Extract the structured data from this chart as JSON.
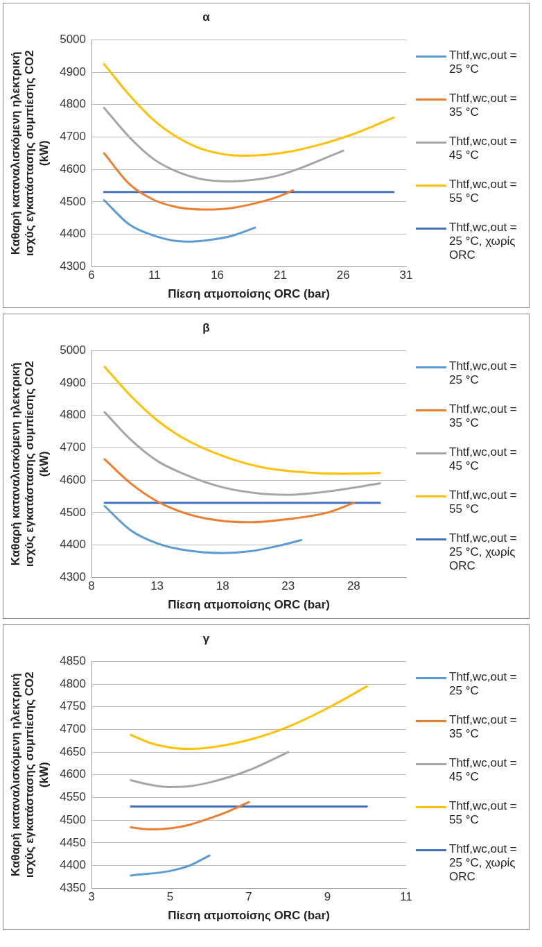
{
  "chart_data": [
    {
      "type": "line",
      "title": "α",
      "xlabel": "Πίεση ατμοποίσης ORC (bar)",
      "ylabel": "Καθαρή καταναλισκόμενη ηλεκτρική ισχύς εγκατάστασης συμπίεσης CO2 (kW)",
      "xlim": [
        6,
        31
      ],
      "xticks": [
        6,
        11,
        16,
        21,
        26,
        31
      ],
      "ylim": [
        4300,
        5000
      ],
      "yticks": [
        4300,
        4400,
        4500,
        4600,
        4700,
        4800,
        4900,
        5000
      ],
      "grid": "y",
      "legend": "right",
      "marker": "none",
      "line_style": "solid",
      "series": [
        {
          "name": "Thtf,wc,out = 25 °C",
          "color": "#5b9bd5",
          "x": [
            7,
            9,
            11,
            13,
            14,
            15,
            17,
            19
          ],
          "values": [
            4505,
            4430,
            4395,
            4378,
            4377,
            4380,
            4393,
            4420
          ]
        },
        {
          "name": "Thtf,wc,out = 35 °C",
          "color": "#ed7d31",
          "x": [
            7,
            9,
            11,
            13,
            15,
            17,
            19,
            21,
            22
          ],
          "values": [
            4650,
            4555,
            4505,
            4482,
            4476,
            4480,
            4495,
            4518,
            4535
          ]
        },
        {
          "name": "Thtf,wc,out = 45 °C",
          "color": "#a5a5a5",
          "x": [
            7,
            9,
            11,
            13,
            15,
            17,
            19,
            21,
            23,
            26
          ],
          "values": [
            4790,
            4700,
            4630,
            4590,
            4568,
            4563,
            4568,
            4583,
            4610,
            4658
          ]
        },
        {
          "name": "Thtf,wc,out = 55 °C",
          "color": "#ffc000",
          "x": [
            7,
            9,
            11,
            13,
            15,
            18,
            21,
            24,
            27,
            30
          ],
          "values": [
            4925,
            4830,
            4750,
            4695,
            4660,
            4642,
            4650,
            4675,
            4712,
            4760
          ]
        },
        {
          "name": "Thtf,wc,out = 25 °C, χωρίς ORC",
          "color": "#4472c4",
          "x": [
            7,
            30
          ],
          "values": [
            4530,
            4530
          ]
        }
      ]
    },
    {
      "type": "line",
      "title": "β",
      "xlabel": "Πίεση ατμοποίσης ORC (bar)",
      "ylabel": "Καθαρή καταναλισκόμενη ηλεκτρική ισχύς εγκατάστασης συμπίεσης CO2 (kW)",
      "xlim": [
        8,
        32
      ],
      "xticks": [
        8,
        13,
        18,
        23,
        28
      ],
      "ylim": [
        4300,
        5000
      ],
      "yticks": [
        4300,
        4400,
        4500,
        4600,
        4700,
        4800,
        4900,
        5000
      ],
      "grid": "y",
      "legend": "right",
      "marker": "none",
      "line_style": "solid",
      "series": [
        {
          "name": "Thtf,wc,out = 25 °C",
          "color": "#5b9bd5",
          "x": [
            9,
            11,
            13,
            15,
            18,
            20,
            22,
            24
          ],
          "values": [
            4520,
            4445,
            4405,
            4385,
            4375,
            4380,
            4395,
            4415
          ]
        },
        {
          "name": "Thtf,wc,out = 35 °C",
          "color": "#ed7d31",
          "x": [
            9,
            11,
            13,
            15,
            17,
            20,
            23,
            26,
            28
          ],
          "values": [
            4665,
            4590,
            4535,
            4500,
            4480,
            4470,
            4480,
            4500,
            4530
          ]
        },
        {
          "name": "Thtf,wc,out = 45 °C",
          "color": "#a5a5a5",
          "x": [
            9,
            11,
            13,
            15,
            18,
            21,
            23,
            26,
            30
          ],
          "values": [
            4810,
            4725,
            4660,
            4620,
            4578,
            4558,
            4555,
            4565,
            4590
          ]
        },
        {
          "name": "Thtf,wc,out = 55 °C",
          "color": "#ffc000",
          "x": [
            9,
            11,
            13,
            15,
            18,
            21,
            24,
            27,
            30
          ],
          "values": [
            4950,
            4860,
            4785,
            4730,
            4675,
            4640,
            4625,
            4620,
            4622
          ]
        },
        {
          "name": "Thtf,wc,out = 25 °C, χωρίς ORC",
          "color": "#4472c4",
          "x": [
            9,
            30
          ],
          "values": [
            4530,
            4530
          ]
        }
      ]
    },
    {
      "type": "line",
      "title": "γ",
      "xlabel": "Πίεση ατμοποίσης ORC (bar)",
      "ylabel": "Καθαρή καταναλισκόμενη ηλεκτρική ισχύς εγκατάστασης συμπίεσης CO2 (kW)",
      "xlim": [
        3,
        11
      ],
      "xticks": [
        3,
        5,
        7,
        9,
        11
      ],
      "ylim": [
        4350,
        4850
      ],
      "yticks": [
        4350,
        4400,
        4450,
        4500,
        4550,
        4600,
        4650,
        4700,
        4750,
        4800,
        4850
      ],
      "grid": "y",
      "legend": "right",
      "marker": "none",
      "line_style": "solid",
      "series": [
        {
          "name": "Thtf,wc,out = 25 °C",
          "color": "#5b9bd5",
          "x": [
            4,
            5,
            5.5,
            6
          ],
          "values": [
            4378,
            4388,
            4400,
            4422
          ]
        },
        {
          "name": "Thtf,wc,out = 35 °C",
          "color": "#ed7d31",
          "x": [
            4,
            4.5,
            5,
            5.5,
            6,
            6.5,
            7
          ],
          "values": [
            4484,
            4480,
            4482,
            4490,
            4504,
            4520,
            4540
          ]
        },
        {
          "name": "Thtf,wc,out = 45 °C",
          "color": "#a5a5a5",
          "x": [
            4,
            4.5,
            5,
            5.5,
            6,
            7,
            8
          ],
          "values": [
            4588,
            4578,
            4573,
            4575,
            4583,
            4610,
            4650
          ]
        },
        {
          "name": "Thtf,wc,out = 55 °C",
          "color": "#ffc000",
          "x": [
            4,
            4.5,
            5,
            5.5,
            6,
            7,
            8,
            9,
            10
          ],
          "values": [
            4688,
            4670,
            4660,
            4657,
            4660,
            4677,
            4706,
            4747,
            4795
          ]
        },
        {
          "name": "Thtf,wc,out = 25 °C, χωρίς ORC",
          "color": "#4472c4",
          "x": [
            4,
            10
          ],
          "values": [
            4530,
            4530
          ]
        }
      ]
    }
  ]
}
